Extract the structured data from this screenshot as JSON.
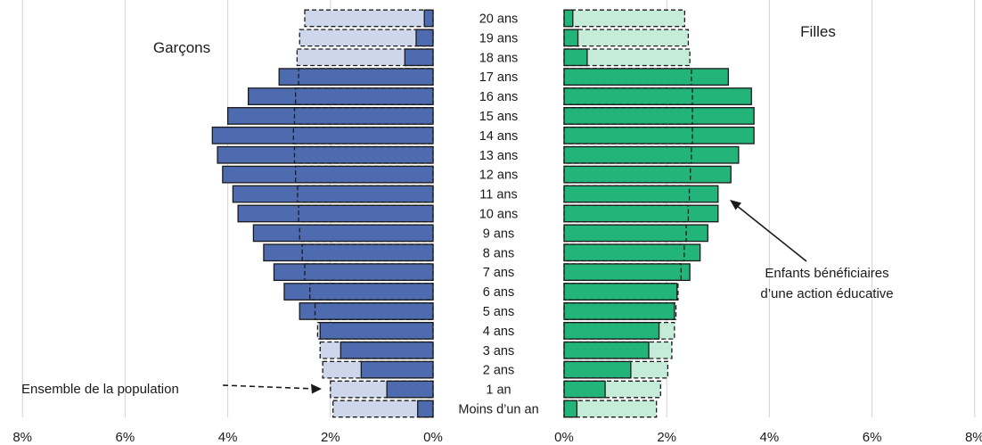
{
  "chart_data": {
    "type": "bar",
    "orientation": "horizontal-pyramid",
    "categories": [
      "Moins d’un an",
      "1 an",
      "2 ans",
      "3 ans",
      "4 ans",
      "5 ans",
      "6 ans",
      "7 ans",
      "8 ans",
      "9 ans",
      "10 ans",
      "11 ans",
      "12 ans",
      "13 ans",
      "14 ans",
      "15 ans",
      "16 ans",
      "17 ans",
      "18 ans",
      "19 ans",
      "20 ans"
    ],
    "left_title": "Garçons",
    "right_title": "Filles",
    "xaxis_range": [
      0,
      8
    ],
    "ticks": [
      0,
      2,
      4,
      6,
      8
    ],
    "tick_labels": [
      "0%",
      "2%",
      "4%",
      "6%",
      "8%"
    ],
    "grid": true,
    "series": [
      {
        "side": "left",
        "kind": "bar",
        "values": [
          0.3,
          0.9,
          1.4,
          1.8,
          2.2,
          2.6,
          2.9,
          3.1,
          3.3,
          3.5,
          3.8,
          3.9,
          4.1,
          4.2,
          4.3,
          4.0,
          3.6,
          3.0,
          0.55,
          0.33,
          0.17
        ]
      },
      {
        "side": "left",
        "kind": "outline",
        "values": [
          1.95,
          2.0,
          2.15,
          2.2,
          2.25,
          2.3,
          2.4,
          2.5,
          2.55,
          2.6,
          2.62,
          2.64,
          2.68,
          2.7,
          2.72,
          2.7,
          2.68,
          2.62,
          2.65,
          2.6,
          2.5
        ]
      },
      {
        "side": "right",
        "kind": "bar",
        "values": [
          0.25,
          0.8,
          1.3,
          1.65,
          1.85,
          2.15,
          2.2,
          2.45,
          2.65,
          2.8,
          3.0,
          3.0,
          3.25,
          3.4,
          3.7,
          3.7,
          3.65,
          3.2,
          0.45,
          0.27,
          0.17
        ]
      },
      {
        "side": "right",
        "kind": "outline",
        "values": [
          1.8,
          1.88,
          2.02,
          2.1,
          2.15,
          2.18,
          2.22,
          2.28,
          2.34,
          2.38,
          2.42,
          2.44,
          2.46,
          2.48,
          2.5,
          2.5,
          2.5,
          2.48,
          2.45,
          2.42,
          2.35
        ]
      }
    ],
    "annotations": [
      {
        "text": "Ensemble de la population"
      },
      {
        "line1": "Enfants bénéficiaires",
        "line2": "d’une action éducative"
      }
    ],
    "colors": {
      "left_bar": "#4e6bb0",
      "left_bar_light": "#cdd6ea",
      "right_bar": "#23b47a",
      "right_bar_light": "#c4ecd9",
      "grid": "#d9d9d9",
      "outline": "#1a1a1a"
    }
  }
}
